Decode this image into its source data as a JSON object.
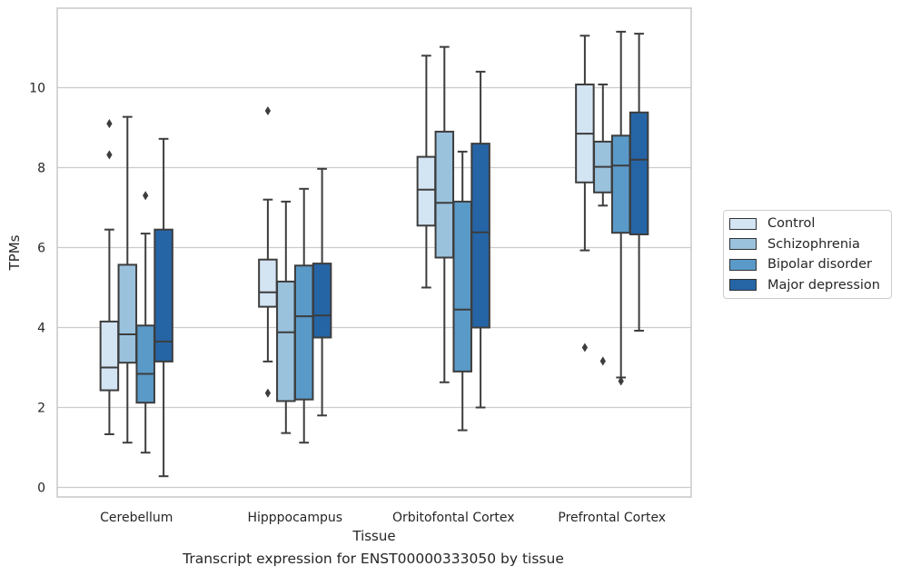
{
  "chart_data": {
    "type": "box",
    "title": "",
    "caption": "Transcript expression for ENST00000333050 by tissue",
    "xlabel": "Tissue",
    "ylabel": "TPMs",
    "ylim": [
      -0.25,
      11.75
    ],
    "yticks": [
      "0",
      "2",
      "4",
      "6",
      "8",
      "10"
    ],
    "grid": "horizontal",
    "legend_position": "right",
    "categories": [
      "Cerebellum",
      "Hipppocampus",
      "Orbitofontal Cortex",
      "Prefrontal Cortex"
    ],
    "series": [
      {
        "name": "Control",
        "color": "#d3e4f3",
        "boxes": [
          {
            "whislo": 1.33,
            "q1": 2.43,
            "med": 3.0,
            "q3": 4.15,
            "whishi": 6.45,
            "fliers": [
              8.32,
              9.1
            ]
          },
          {
            "whislo": 3.15,
            "q1": 4.52,
            "med": 4.88,
            "q3": 5.7,
            "whishi": 7.2,
            "fliers": [
              2.36,
              9.42
            ]
          },
          {
            "whislo": 5.0,
            "q1": 6.55,
            "med": 7.45,
            "q3": 8.27,
            "whishi": 10.8,
            "fliers": []
          },
          {
            "whislo": 5.93,
            "q1": 7.63,
            "med": 8.85,
            "q3": 10.08,
            "whishi": 11.3,
            "fliers": [
              3.5
            ]
          }
        ]
      },
      {
        "name": "Schizophrenia",
        "color": "#9ac2dd",
        "boxes": [
          {
            "whislo": 1.12,
            "q1": 3.12,
            "med": 3.83,
            "q3": 5.57,
            "whishi": 9.27,
            "fliers": []
          },
          {
            "whislo": 1.36,
            "q1": 2.16,
            "med": 3.88,
            "q3": 5.15,
            "whishi": 7.15,
            "fliers": []
          },
          {
            "whislo": 2.63,
            "q1": 5.75,
            "med": 7.12,
            "q3": 8.9,
            "whishi": 11.02,
            "fliers": []
          },
          {
            "whislo": 7.05,
            "q1": 7.38,
            "med": 8.02,
            "q3": 8.65,
            "whishi": 10.08,
            "fliers": [
              3.16
            ]
          }
        ]
      },
      {
        "name": "Bipolar disorder",
        "color": "#5a9ac8",
        "boxes": [
          {
            "whislo": 0.87,
            "q1": 2.12,
            "med": 2.84,
            "q3": 4.05,
            "whishi": 6.35,
            "fliers": [
              7.3
            ]
          },
          {
            "whislo": 1.12,
            "q1": 2.2,
            "med": 4.28,
            "q3": 5.55,
            "whishi": 7.47,
            "fliers": []
          },
          {
            "whislo": 1.43,
            "q1": 2.9,
            "med": 4.45,
            "q3": 7.15,
            "whishi": 8.4,
            "fliers": []
          },
          {
            "whislo": 2.75,
            "q1": 6.37,
            "med": 8.05,
            "q3": 8.8,
            "whishi": 11.4,
            "fliers": [
              2.66
            ]
          }
        ]
      },
      {
        "name": "Major depression",
        "color": "#2565a6",
        "boxes": [
          {
            "whislo": 0.28,
            "q1": 3.15,
            "med": 3.65,
            "q3": 6.45,
            "whishi": 8.72,
            "fliers": []
          },
          {
            "whislo": 1.8,
            "q1": 3.75,
            "med": 4.3,
            "q3": 5.6,
            "whishi": 7.97,
            "fliers": []
          },
          {
            "whislo": 2.0,
            "q1": 4.0,
            "med": 6.38,
            "q3": 8.6,
            "whishi": 10.4,
            "fliers": []
          },
          {
            "whislo": 3.92,
            "q1": 6.33,
            "med": 8.2,
            "q3": 9.38,
            "whishi": 11.35,
            "fliers": []
          }
        ]
      }
    ]
  }
}
